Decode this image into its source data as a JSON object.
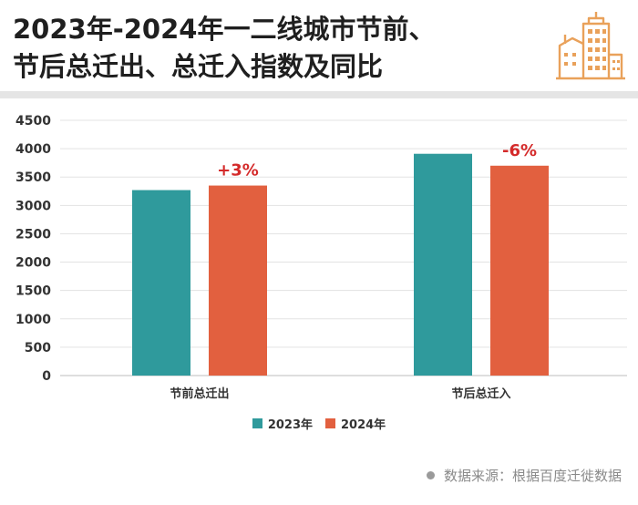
{
  "title_lines": [
    "2023年-2024年一二线城市节前、",
    "节后总迁出、总迁入指数及同比"
  ],
  "logo_icon": "city-buildings-icon",
  "colors": {
    "series_2023": "#2f9a9c",
    "series_2024": "#e2603f",
    "annotation": "#d42a2a",
    "logo": "#e9a15a"
  },
  "chart_data": {
    "type": "bar",
    "categories": [
      "节前总迁出",
      "节后总迁入"
    ],
    "series": [
      {
        "name": "2023年",
        "values": [
          3270,
          3910
        ]
      },
      {
        "name": "2024年",
        "values": [
          3350,
          3700
        ]
      }
    ],
    "annotations": [
      "+3%",
      "-6%"
    ],
    "ylim": [
      0,
      4500
    ],
    "yticks": [
      "0",
      "500",
      "1000",
      "1500",
      "2000",
      "2500",
      "3000",
      "3500",
      "4000",
      "4500"
    ],
    "grid": true,
    "legend_position": "bottom"
  },
  "source_text": "数据来源：根据百度迁徙数据"
}
